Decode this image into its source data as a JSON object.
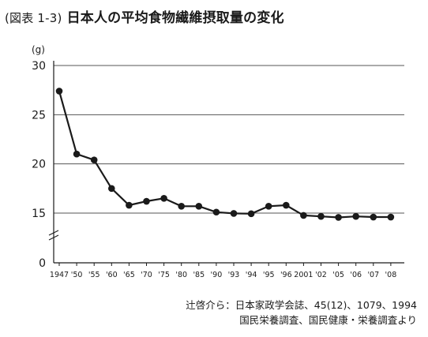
{
  "figure": {
    "number": "(図表 1-3)",
    "title": "日本人の平均食物繊維摂取量の変化"
  },
  "chart_data": {
    "type": "line",
    "title": "日本人の平均食物繊維摂取量の変化",
    "ylabel": "(g)",
    "xlabel": "",
    "x": [
      "1947",
      "'50",
      "'55",
      "'60",
      "'65",
      "'70",
      "'75",
      "'80",
      "'85",
      "'90",
      "'93",
      "'94",
      "'95",
      "'96",
      "2001",
      "'02",
      "'05",
      "'06",
      "'07",
      "'08"
    ],
    "values": [
      27.4,
      21.0,
      20.4,
      17.5,
      15.8,
      16.2,
      16.5,
      15.7,
      15.7,
      15.1,
      14.9,
      14.8,
      15.7,
      15.8,
      14.3,
      14.0,
      13.7,
      14.0,
      13.8,
      13.8
    ],
    "yticks": [
      0,
      15,
      20,
      25,
      30
    ],
    "ylim": [
      0,
      30
    ],
    "axis_break": "0-15",
    "grid": true,
    "line_color": "#1a1a1a",
    "marker": "filled-circle"
  },
  "source": {
    "line1": "辻啓介ら：日本家政学会誌、45(12)、1079、1994",
    "line2": "国民栄養調査、国民健康・栄養調査より"
  }
}
